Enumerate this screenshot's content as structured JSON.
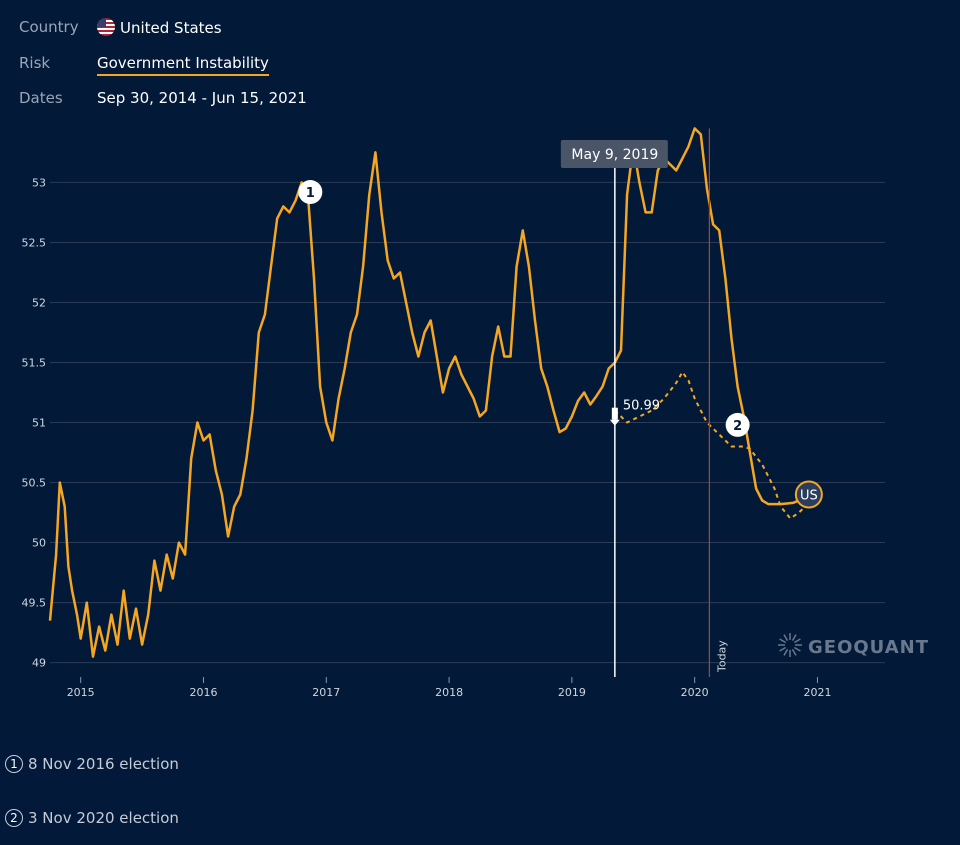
{
  "filters": {
    "country_label": "Country",
    "country_value": "United States",
    "country_flag_icon": "us-flag-icon",
    "risk_label": "Risk",
    "risk_value": "Government Instability",
    "dates_label": "Dates",
    "dates_value": "Sep 30, 2014 - Jun 15, 2021"
  },
  "colors": {
    "background": "#021a38",
    "line": "#f5a623",
    "today_line": "#c0392b",
    "grid": "#2b3b55"
  },
  "chart_data": {
    "type": "line",
    "title": "Government Instability",
    "xlabel": "",
    "ylabel": "",
    "ylim": [
      48.88,
      53.52
    ],
    "xlim": [
      2014.75,
      2021.55
    ],
    "yticks": [
      "49",
      "49.5",
      "50",
      "50.5",
      "51",
      "51.5",
      "52",
      "52.5",
      "53"
    ],
    "xticks": [
      "2015",
      "2016",
      "2017",
      "2018",
      "2019",
      "2020",
      "2021"
    ],
    "series": [
      {
        "name": "Government Instability (actual)",
        "style": "solid",
        "points": [
          [
            2014.75,
            49.35
          ],
          [
            2014.8,
            49.9
          ],
          [
            2014.83,
            50.5
          ],
          [
            2014.87,
            50.3
          ],
          [
            2014.9,
            49.8
          ],
          [
            2014.93,
            49.6
          ],
          [
            2014.97,
            49.4
          ],
          [
            2015.0,
            49.2
          ],
          [
            2015.05,
            49.5
          ],
          [
            2015.1,
            49.05
          ],
          [
            2015.15,
            49.3
          ],
          [
            2015.2,
            49.1
          ],
          [
            2015.25,
            49.4
          ],
          [
            2015.3,
            49.15
          ],
          [
            2015.35,
            49.6
          ],
          [
            2015.4,
            49.2
          ],
          [
            2015.45,
            49.45
          ],
          [
            2015.5,
            49.15
          ],
          [
            2015.55,
            49.4
          ],
          [
            2015.6,
            49.85
          ],
          [
            2015.65,
            49.6
          ],
          [
            2015.7,
            49.9
          ],
          [
            2015.75,
            49.7
          ],
          [
            2015.8,
            50.0
          ],
          [
            2015.85,
            49.9
          ],
          [
            2015.9,
            50.7
          ],
          [
            2015.95,
            51.0
          ],
          [
            2016.0,
            50.85
          ],
          [
            2016.05,
            50.9
          ],
          [
            2016.1,
            50.6
          ],
          [
            2016.15,
            50.4
          ],
          [
            2016.2,
            50.05
          ],
          [
            2016.25,
            50.3
          ],
          [
            2016.3,
            50.4
          ],
          [
            2016.35,
            50.7
          ],
          [
            2016.4,
            51.1
          ],
          [
            2016.45,
            51.75
          ],
          [
            2016.5,
            51.9
          ],
          [
            2016.55,
            52.3
          ],
          [
            2016.6,
            52.7
          ],
          [
            2016.65,
            52.8
          ],
          [
            2016.7,
            52.75
          ],
          [
            2016.75,
            52.85
          ],
          [
            2016.8,
            53.0
          ],
          [
            2016.85,
            52.9
          ],
          [
            2016.9,
            52.2
          ],
          [
            2016.95,
            51.3
          ],
          [
            2017.0,
            51.0
          ],
          [
            2017.05,
            50.85
          ],
          [
            2017.1,
            51.2
          ],
          [
            2017.15,
            51.45
          ],
          [
            2017.2,
            51.75
          ],
          [
            2017.25,
            51.9
          ],
          [
            2017.3,
            52.3
          ],
          [
            2017.35,
            52.9
          ],
          [
            2017.4,
            53.25
          ],
          [
            2017.45,
            52.75
          ],
          [
            2017.5,
            52.35
          ],
          [
            2017.55,
            52.2
          ],
          [
            2017.6,
            52.25
          ],
          [
            2017.65,
            52.0
          ],
          [
            2017.7,
            51.75
          ],
          [
            2017.75,
            51.55
          ],
          [
            2017.8,
            51.75
          ],
          [
            2017.85,
            51.85
          ],
          [
            2017.9,
            51.55
          ],
          [
            2017.95,
            51.25
          ],
          [
            2018.0,
            51.45
          ],
          [
            2018.05,
            51.55
          ],
          [
            2018.1,
            51.4
          ],
          [
            2018.15,
            51.3
          ],
          [
            2018.2,
            51.2
          ],
          [
            2018.25,
            51.05
          ],
          [
            2018.3,
            51.1
          ],
          [
            2018.35,
            51.55
          ],
          [
            2018.4,
            51.8
          ],
          [
            2018.45,
            51.55
          ],
          [
            2018.5,
            51.55
          ],
          [
            2018.55,
            52.3
          ],
          [
            2018.6,
            52.6
          ],
          [
            2018.65,
            52.3
          ],
          [
            2018.7,
            51.85
          ],
          [
            2018.75,
            51.45
          ],
          [
            2018.8,
            51.3
          ],
          [
            2018.85,
            51.1
          ],
          [
            2018.9,
            50.92
          ],
          [
            2018.95,
            50.95
          ],
          [
            2019.0,
            51.05
          ],
          [
            2019.05,
            51.18
          ],
          [
            2019.1,
            51.25
          ],
          [
            2019.15,
            51.15
          ],
          [
            2019.2,
            51.22
          ],
          [
            2019.25,
            51.3
          ],
          [
            2019.3,
            51.45
          ],
          [
            2019.35,
            51.5
          ],
          [
            2019.4,
            51.6
          ],
          [
            2019.45,
            52.9
          ],
          [
            2019.5,
            53.3
          ],
          [
            2019.55,
            53.0
          ],
          [
            2019.6,
            52.75
          ],
          [
            2019.65,
            52.75
          ],
          [
            2019.7,
            53.1
          ],
          [
            2019.75,
            53.2
          ],
          [
            2019.8,
            53.15
          ],
          [
            2019.85,
            53.1
          ],
          [
            2019.9,
            53.2
          ],
          [
            2019.95,
            53.3
          ],
          [
            2020.0,
            53.45
          ],
          [
            2020.05,
            53.4
          ],
          [
            2020.1,
            52.95
          ],
          [
            2020.15,
            52.65
          ],
          [
            2020.2,
            52.6
          ],
          [
            2020.25,
            52.2
          ],
          [
            2020.3,
            51.7
          ],
          [
            2020.35,
            51.3
          ],
          [
            2020.4,
            51.05
          ],
          [
            2020.45,
            50.75
          ],
          [
            2020.5,
            50.45
          ],
          [
            2020.55,
            50.35
          ],
          [
            2020.6,
            50.32
          ],
          [
            2020.7,
            50.32
          ],
          [
            2020.8,
            50.33
          ],
          [
            2020.85,
            50.35
          ],
          [
            2020.9,
            50.38
          ]
        ]
      },
      {
        "name": "Government Instability (forecast)",
        "style": "dashed",
        "points": [
          [
            2019.35,
            51.1
          ],
          [
            2019.45,
            51.0
          ],
          [
            2019.55,
            51.05
          ],
          [
            2019.65,
            51.1
          ],
          [
            2019.75,
            51.2
          ],
          [
            2019.85,
            51.33
          ],
          [
            2019.9,
            51.42
          ],
          [
            2019.95,
            51.35
          ],
          [
            2020.0,
            51.2
          ],
          [
            2020.1,
            51.0
          ],
          [
            2020.2,
            50.9
          ],
          [
            2020.3,
            50.8
          ],
          [
            2020.4,
            50.8
          ],
          [
            2020.45,
            50.78
          ],
          [
            2020.55,
            50.65
          ],
          [
            2020.65,
            50.45
          ],
          [
            2020.7,
            50.3
          ],
          [
            2020.78,
            50.2
          ],
          [
            2020.85,
            50.25
          ],
          [
            2020.9,
            50.3
          ]
        ]
      }
    ],
    "hover": {
      "date": "May 9, 2019",
      "value_label": "50.99",
      "x": 2019.35,
      "y": 50.99
    },
    "today": {
      "label": "Today",
      "x": 2020.12
    },
    "annotations": [
      {
        "number": "1",
        "x": 2016.87,
        "y": 52.92
      },
      {
        "number": "2",
        "x": 2020.35,
        "y": 50.98
      }
    ],
    "end_label": {
      "text": "US",
      "x": 2020.93,
      "y": 50.4
    }
  },
  "watermark": {
    "text": "GEOQUANT",
    "icon": "geoquant-logo-icon"
  },
  "notes": [
    {
      "number": "1",
      "text": "8 Nov 2016 election"
    },
    {
      "number": "2",
      "text": "3 Nov 2020 election"
    }
  ]
}
